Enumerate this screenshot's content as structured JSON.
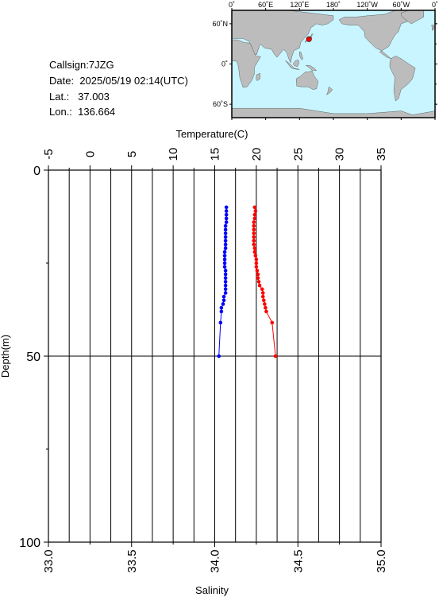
{
  "info": {
    "callsign_label": "Callsign:",
    "callsign": "7JZG",
    "date_label": "Date:",
    "date": "2025/05/19 02:14(UTC)",
    "lat_label": "Lat.:",
    "lat": "37.003",
    "lon_label": "Lon.:",
    "lon": "136.664"
  },
  "map": {
    "top_ticks": [
      "0˚",
      "60˚E",
      "120˚E",
      "180˚",
      "120˚W",
      "60˚W",
      "0˚"
    ],
    "left_ticks": [
      "60˚N",
      "0˚",
      "60˚S"
    ],
    "station": {
      "lat": 37.003,
      "lon": 136.664
    },
    "ocean_color": "#c8f5ff",
    "land_color": "#bcbcbc",
    "marker_color": "#ff0000"
  },
  "chart_data": {
    "type": "line",
    "top_axis_label": "Temperature(C)",
    "bottom_axis_label": "Salinity",
    "left_axis_label": "Depth(m)",
    "temperature_ticks": [
      "-5",
      "0",
      "5",
      "10",
      "15",
      "20",
      "25",
      "30",
      "35"
    ],
    "salinity_ticks": [
      "33.0",
      "33.5",
      "34.0",
      "34.5",
      "35.0"
    ],
    "depth_ticks": [
      "0",
      "50",
      "100"
    ],
    "temperature_range": [
      -5,
      35
    ],
    "salinity_range": [
      33.0,
      35.0
    ],
    "depth_range": [
      0,
      100
    ],
    "series": [
      {
        "color": "#ff0000",
        "axis": "temperature",
        "points": [
          {
            "depth": 10,
            "value": 19.8
          },
          {
            "depth": 11,
            "value": 19.9
          },
          {
            "depth": 12,
            "value": 19.8
          },
          {
            "depth": 13,
            "value": 19.8
          },
          {
            "depth": 14,
            "value": 19.7
          },
          {
            "depth": 15,
            "value": 19.7
          },
          {
            "depth": 16,
            "value": 19.7
          },
          {
            "depth": 17,
            "value": 19.7
          },
          {
            "depth": 18,
            "value": 19.7
          },
          {
            "depth": 19,
            "value": 19.7
          },
          {
            "depth": 20,
            "value": 19.7
          },
          {
            "depth": 21,
            "value": 19.8
          },
          {
            "depth": 22,
            "value": 19.8
          },
          {
            "depth": 23,
            "value": 19.9
          },
          {
            "depth": 24,
            "value": 20.0
          },
          {
            "depth": 25,
            "value": 20.0
          },
          {
            "depth": 26,
            "value": 20.0
          },
          {
            "depth": 27,
            "value": 20.1
          },
          {
            "depth": 28,
            "value": 20.2
          },
          {
            "depth": 29,
            "value": 20.2
          },
          {
            "depth": 30,
            "value": 20.3
          },
          {
            "depth": 31,
            "value": 20.4
          },
          {
            "depth": 32,
            "value": 20.7
          },
          {
            "depth": 33,
            "value": 20.8
          },
          {
            "depth": 34,
            "value": 20.8
          },
          {
            "depth": 35,
            "value": 20.9
          },
          {
            "depth": 36,
            "value": 21.0
          },
          {
            "depth": 37,
            "value": 21.1
          },
          {
            "depth": 38,
            "value": 21.2
          },
          {
            "depth": 41,
            "value": 21.9
          },
          {
            "depth": 50,
            "value": 22.3
          }
        ]
      },
      {
        "color": "#0000ff",
        "axis": "salinity",
        "points": [
          {
            "depth": 10,
            "value": 34.07
          },
          {
            "depth": 11,
            "value": 34.07
          },
          {
            "depth": 12,
            "value": 34.07
          },
          {
            "depth": 13,
            "value": 34.07
          },
          {
            "depth": 14,
            "value": 34.07
          },
          {
            "depth": 15,
            "value": 34.065
          },
          {
            "depth": 16,
            "value": 34.065
          },
          {
            "depth": 17,
            "value": 34.065
          },
          {
            "depth": 18,
            "value": 34.065
          },
          {
            "depth": 19,
            "value": 34.065
          },
          {
            "depth": 20,
            "value": 34.065
          },
          {
            "depth": 21,
            "value": 34.065
          },
          {
            "depth": 22,
            "value": 34.06
          },
          {
            "depth": 23,
            "value": 34.06
          },
          {
            "depth": 24,
            "value": 34.06
          },
          {
            "depth": 25,
            "value": 34.06
          },
          {
            "depth": 26,
            "value": 34.06
          },
          {
            "depth": 27,
            "value": 34.065
          },
          {
            "depth": 28,
            "value": 34.065
          },
          {
            "depth": 29,
            "value": 34.065
          },
          {
            "depth": 30,
            "value": 34.065
          },
          {
            "depth": 31,
            "value": 34.065
          },
          {
            "depth": 32,
            "value": 34.065
          },
          {
            "depth": 33,
            "value": 34.065
          },
          {
            "depth": 34,
            "value": 34.055
          },
          {
            "depth": 35,
            "value": 34.055
          },
          {
            "depth": 36,
            "value": 34.05
          },
          {
            "depth": 37,
            "value": 34.04
          },
          {
            "depth": 38,
            "value": 34.04
          },
          {
            "depth": 41,
            "value": 34.035
          },
          {
            "depth": 50,
            "value": 34.025
          }
        ]
      }
    ],
    "grid": true
  }
}
